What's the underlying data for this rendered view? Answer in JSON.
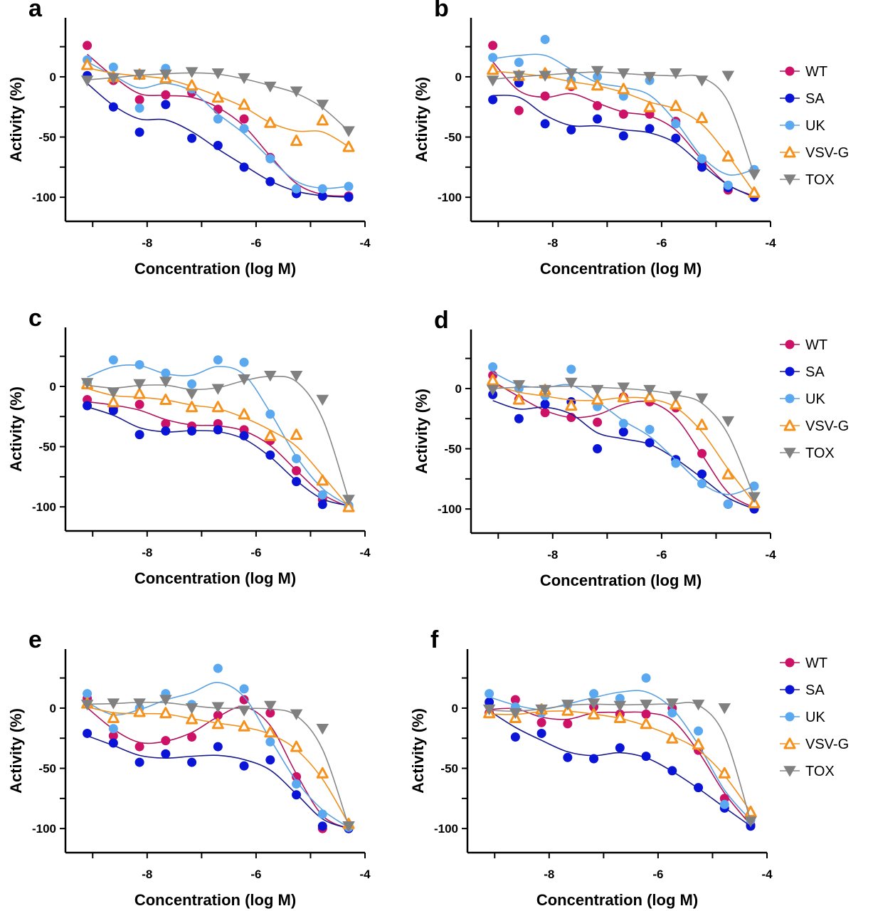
{
  "series_colors": {
    "WT": "#cc1166",
    "SA": "#0a14d6",
    "UK": "#5aa8f0",
    "VSV-G": "#f5921e",
    "TOX": "#808080"
  },
  "curve_colors": {
    "WT": "#b0105a",
    "SA": "#1a1a8c",
    "UK": "#5aa0e0",
    "VSV-G": "#f0901e",
    "TOX": "#888888"
  },
  "markers": {
    "WT": "circle",
    "SA": "circle",
    "UK": "circle",
    "VSV-G": "triangle-up",
    "TOX": "triangle-down"
  },
  "chart_data": [
    {
      "panel": "a",
      "type": "scatter",
      "xlabel": "Concentration (log M)",
      "ylabel": "Activity (%)",
      "xlim": [
        -9.5,
        -4
      ],
      "ylim": [
        -120,
        49
      ],
      "xticks": [
        -8,
        -6,
        -4
      ],
      "yticks": [
        0,
        -50,
        -100
      ],
      "legend": false,
      "x": [
        -9.1,
        -8.62,
        -8.14,
        -7.66,
        -7.18,
        -6.7,
        -6.22,
        -5.74,
        -5.26,
        -4.78,
        -4.3
      ],
      "series": [
        {
          "name": "WT",
          "values": [
            26,
            -3,
            -19,
            -15,
            -13,
            -27,
            -35,
            -67,
            -94,
            -99,
            -99
          ]
        },
        {
          "name": "SA",
          "values": [
            1,
            -25,
            -46,
            -23,
            -51,
            -57,
            -75,
            -87,
            -97,
            -99,
            -100
          ]
        },
        {
          "name": "UK",
          "values": [
            14,
            8,
            -26,
            7,
            -10,
            -35,
            -43,
            -68,
            -93,
            -93,
            -91
          ]
        },
        {
          "name": "VSV-G",
          "values": [
            10,
            0,
            2,
            -1,
            -7,
            -17,
            -23,
            -38,
            -53,
            -36,
            -58
          ]
        },
        {
          "name": "TOX",
          "values": [
            -3,
            -1,
            2,
            2,
            4,
            3,
            -1,
            -8,
            -12,
            -23,
            -45
          ]
        }
      ]
    },
    {
      "panel": "b",
      "type": "scatter",
      "xlabel": "Concentration (log M)",
      "ylabel": "Activity (%)",
      "xlim": [
        -9.5,
        -4
      ],
      "ylim": [
        -120,
        49
      ],
      "xticks": [
        -8,
        -6,
        -4
      ],
      "yticks": [
        0,
        -50,
        -100
      ],
      "legend": true,
      "x": [
        -9.1,
        -8.62,
        -8.14,
        -7.66,
        -7.18,
        -6.7,
        -6.22,
        -5.74,
        -5.26,
        -4.78,
        -4.3
      ],
      "series": [
        {
          "name": "WT",
          "values": [
            26,
            -28,
            -16,
            -8,
            -24,
            -31,
            -31,
            -37,
            -72,
            -94,
            -99
          ]
        },
        {
          "name": "SA",
          "values": [
            -19,
            -5,
            -39,
            -44,
            -35,
            -49,
            -43,
            -51,
            -75,
            -92,
            -100
          ]
        },
        {
          "name": "UK",
          "values": [
            16,
            12,
            31,
            -3,
            0,
            -16,
            -3,
            -39,
            -68,
            -90,
            -77
          ]
        },
        {
          "name": "VSV-G",
          "values": [
            6,
            1,
            3,
            -6,
            -7,
            -10,
            -25,
            -24,
            -34,
            -66,
            -96
          ]
        },
        {
          "name": "TOX",
          "values": [
            -3,
            1,
            1,
            3,
            5,
            3,
            0,
            3,
            -3,
            1,
            -81
          ]
        }
      ]
    },
    {
      "panel": "c",
      "type": "scatter",
      "xlabel": "Concentration (log M)",
      "ylabel": "Activity (%)",
      "xlim": [
        -9.5,
        -4
      ],
      "ylim": [
        -120,
        49
      ],
      "xticks": [
        -8,
        -6,
        -4
      ],
      "yticks": [
        0,
        -50,
        -100
      ],
      "legend": false,
      "x": [
        -9.1,
        -8.62,
        -8.14,
        -7.66,
        -7.18,
        -6.7,
        -6.22,
        -5.74,
        -5.26,
        -4.78,
        -4.3
      ],
      "series": [
        {
          "name": "WT",
          "values": [
            -11,
            -18,
            -15,
            -31,
            -33,
            -31,
            -36,
            -45,
            -70,
            -94,
            -100
          ]
        },
        {
          "name": "SA",
          "values": [
            -16,
            -20,
            -40,
            -37,
            -37,
            -36,
            -41,
            -57,
            -79,
            -98,
            -99
          ]
        },
        {
          "name": "UK",
          "values": [
            3,
            22,
            18,
            11,
            2,
            22,
            20,
            -23,
            -60,
            -90,
            -99
          ]
        },
        {
          "name": "VSV-G",
          "values": [
            2,
            -13,
            -6,
            -11,
            -17,
            -17,
            -23,
            -41,
            -40,
            -78,
            -100
          ]
        },
        {
          "name": "TOX",
          "values": [
            3,
            -5,
            2,
            4,
            -6,
            -2,
            6,
            9,
            9,
            -11,
            -94
          ]
        }
      ]
    },
    {
      "panel": "d",
      "type": "scatter",
      "xlabel": "Concentration (log M)",
      "ylabel": "Activity (%)",
      "xlim": [
        -9.5,
        -4
      ],
      "ylim": [
        -120,
        49
      ],
      "xticks": [
        -8,
        -6,
        -4
      ],
      "yticks": [
        0,
        -50,
        -100
      ],
      "legend": true,
      "x": [
        -9.1,
        -8.62,
        -8.14,
        -7.66,
        -7.18,
        -6.7,
        -6.22,
        -5.74,
        -5.26,
        -4.78,
        -4.3
      ],
      "series": [
        {
          "name": "WT",
          "values": [
            11,
            -9,
            -20,
            -24,
            -28,
            -7,
            -11,
            -16,
            -54,
            -96,
            -99
          ]
        },
        {
          "name": "SA",
          "values": [
            -5,
            -25,
            -13,
            -11,
            -50,
            -36,
            -45,
            -59,
            -71,
            -96,
            -100
          ]
        },
        {
          "name": "UK",
          "values": [
            18,
            0,
            -6,
            16,
            -15,
            -29,
            -34,
            -62,
            -79,
            -96,
            -81
          ]
        },
        {
          "name": "VSV-G",
          "values": [
            7,
            -9,
            -1,
            -14,
            -9,
            -7,
            -7,
            -13,
            -30,
            -71,
            -95
          ]
        },
        {
          "name": "TOX",
          "values": [
            -1,
            3,
            -1,
            5,
            -1,
            1,
            -1,
            -6,
            -8,
            -27,
            -90
          ]
        }
      ]
    },
    {
      "panel": "e",
      "type": "scatter",
      "xlabel": "Concentration (log M)",
      "ylabel": "Activity (%)",
      "xlim": [
        -9.5,
        -4
      ],
      "ylim": [
        -120,
        49
      ],
      "xticks": [
        -8,
        -6,
        -4
      ],
      "yticks": [
        0,
        -50,
        -100
      ],
      "legend": false,
      "x": [
        -9.1,
        -8.62,
        -8.14,
        -7.66,
        -7.18,
        -6.7,
        -6.22,
        -5.74,
        -5.26,
        -4.78,
        -4.3
      ],
      "series": [
        {
          "name": "WT",
          "values": [
            8,
            -23,
            -32,
            -27,
            -24,
            -6,
            7,
            -4,
            -57,
            -100,
            -100
          ]
        },
        {
          "name": "SA",
          "values": [
            -21,
            -29,
            -45,
            -38,
            -45,
            -32,
            -48,
            -43,
            -72,
            -98,
            -100
          ]
        },
        {
          "name": "UK",
          "values": [
            12,
            -17,
            0,
            12,
            3,
            33,
            16,
            -28,
            -63,
            -88,
            -99
          ]
        },
        {
          "name": "VSV-G",
          "values": [
            4,
            -8,
            -3,
            -4,
            -9,
            -13,
            -15,
            -20,
            -32,
            -54,
            -96
          ]
        },
        {
          "name": "TOX",
          "values": [
            3,
            4,
            4,
            7,
            0,
            1,
            -2,
            2,
            -5,
            -17,
            -98
          ]
        }
      ]
    },
    {
      "panel": "f",
      "type": "scatter",
      "xlabel": "Concentration (log M)",
      "ylabel": "Activity (%)",
      "xlim": [
        -9.5,
        -4
      ],
      "ylim": [
        -120,
        49
      ],
      "xticks": [
        -8,
        -6,
        -4
      ],
      "yticks": [
        0,
        -50,
        -100
      ],
      "legend": true,
      "x": [
        -9.1,
        -8.62,
        -8.14,
        -7.66,
        -7.18,
        -6.7,
        -6.22,
        -5.74,
        -5.26,
        -4.78,
        -4.3
      ],
      "series": [
        {
          "name": "WT",
          "values": [
            -4,
            7,
            -12,
            -13,
            1,
            -5,
            -5,
            0,
            -35,
            -75,
            -97
          ]
        },
        {
          "name": "SA",
          "values": [
            5,
            -24,
            -21,
            -41,
            -42,
            -33,
            -40,
            -52,
            -66,
            -83,
            -98
          ]
        },
        {
          "name": "UK",
          "values": [
            12,
            1,
            -4,
            3,
            12,
            8,
            25,
            -4,
            -19,
            -80,
            -93
          ]
        },
        {
          "name": "VSV-G",
          "values": [
            -4,
            -8,
            -1,
            -2,
            -5,
            -8,
            -13,
            -25,
            -30,
            -54,
            -86
          ]
        },
        {
          "name": "TOX",
          "values": [
            -1,
            -4,
            -1,
            3,
            4,
            2,
            3,
            4,
            3,
            0,
            -94
          ]
        }
      ]
    }
  ]
}
